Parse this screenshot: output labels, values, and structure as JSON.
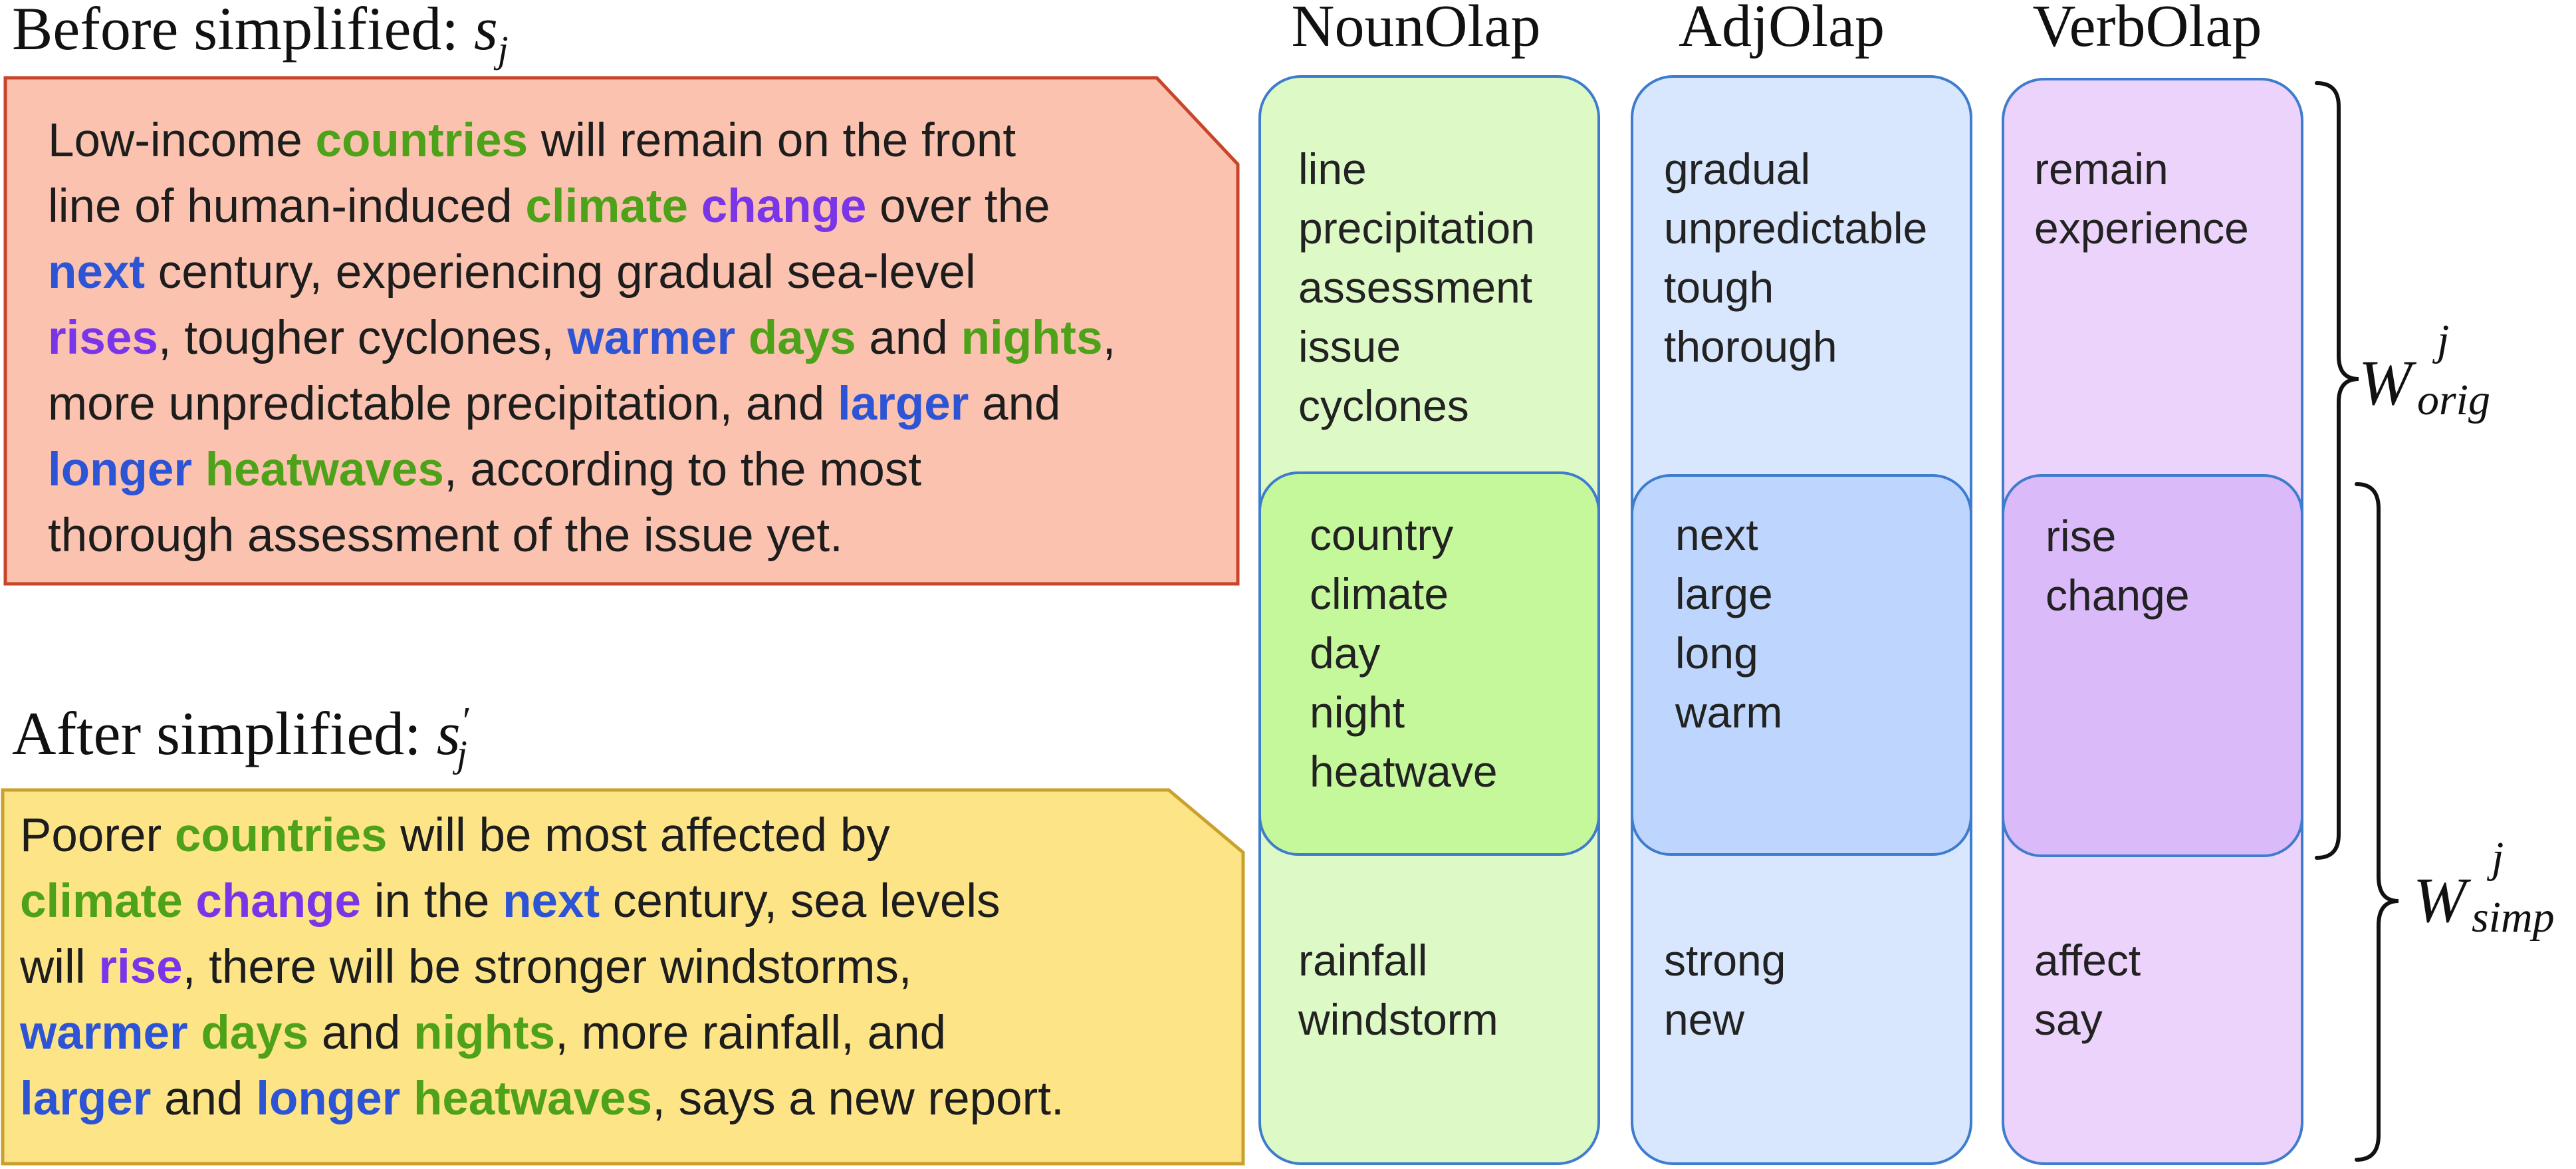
{
  "before": {
    "label": "Before simplified: ",
    "var_base": "s",
    "var_sub": "j",
    "lines": [
      [
        {
          "t": "Low-income "
        },
        {
          "t": "countries",
          "c": "noun"
        },
        {
          "t": " will remain on the front"
        }
      ],
      [
        {
          "t": "line of human-induced "
        },
        {
          "t": "climate",
          "c": "noun"
        },
        {
          "t": " "
        },
        {
          "t": "change",
          "c": "verb"
        },
        {
          "t": " over the"
        }
      ],
      [
        {
          "t": "next",
          "c": "adj"
        },
        {
          "t": " century, experiencing gradual sea-level"
        }
      ],
      [
        {
          "t": "rises",
          "c": "verb"
        },
        {
          "t": ", tougher cyclones, "
        },
        {
          "t": "warmer",
          "c": "adj"
        },
        {
          "t": " "
        },
        {
          "t": "days",
          "c": "noun"
        },
        {
          "t": " and "
        },
        {
          "t": "nights",
          "c": "noun"
        },
        {
          "t": ","
        }
      ],
      [
        {
          "t": "more unpredictable precipitation, and "
        },
        {
          "t": "larger",
          "c": "adj"
        },
        {
          "t": " and"
        }
      ],
      [
        {
          "t": "longer",
          "c": "adj"
        },
        {
          "t": " "
        },
        {
          "t": "heatwaves",
          "c": "noun"
        },
        {
          "t": ", according to the most"
        }
      ],
      [
        {
          "t": "thorough assessment of the issue yet."
        }
      ]
    ]
  },
  "after": {
    "label": "After simplified: ",
    "var_base": "s",
    "var_sup": "′",
    "var_sub": "j",
    "lines": [
      [
        {
          "t": "Poorer "
        },
        {
          "t": "countries",
          "c": "noun"
        },
        {
          "t": " will be most affected by"
        }
      ],
      [
        {
          "t": "climate",
          "c": "noun"
        },
        {
          "t": " "
        },
        {
          "t": "change",
          "c": "verb"
        },
        {
          "t": " in the "
        },
        {
          "t": "next",
          "c": "adj"
        },
        {
          "t": " century, sea levels"
        }
      ],
      [
        {
          "t": "will "
        },
        {
          "t": "rise",
          "c": "verb"
        },
        {
          "t": ", there will be stronger windstorms,"
        }
      ],
      [
        {
          "t": "warmer",
          "c": "adj"
        },
        {
          "t": " "
        },
        {
          "t": "days",
          "c": "noun"
        },
        {
          "t": " and "
        },
        {
          "t": "nights",
          "c": "noun"
        },
        {
          "t": ", more rainfall, and"
        }
      ],
      [
        {
          "t": "larger",
          "c": "adj"
        },
        {
          "t": " and "
        },
        {
          "t": "longer",
          "c": "adj"
        },
        {
          "t": " "
        },
        {
          "t": "heatwaves",
          "c": "noun"
        },
        {
          "t": ", says a new report."
        }
      ]
    ]
  },
  "columns": [
    {
      "key": "noun",
      "title": "NounOlap",
      "orig_only": [
        "line",
        "precipitation",
        "assessment",
        "issue",
        "cyclones"
      ],
      "overlap": [
        "country",
        "climate",
        "day",
        "night",
        "heatwave"
      ],
      "simp_only": [
        "rainfall",
        "windstorm"
      ]
    },
    {
      "key": "adj",
      "title": "AdjOlap",
      "orig_only": [
        "gradual",
        "unpredictable",
        "tough",
        "thorough"
      ],
      "overlap": [
        "next",
        "large",
        "long",
        "warm"
      ],
      "simp_only": [
        "strong",
        "new"
      ]
    },
    {
      "key": "verb",
      "title": "VerbOlap",
      "orig_only": [
        "remain",
        "experience"
      ],
      "overlap": [
        "rise",
        "change"
      ],
      "simp_only": [
        "affect",
        "say"
      ]
    }
  ],
  "brackets": {
    "orig": {
      "base": "W",
      "sup": "j",
      "sub": "orig"
    },
    "simp": {
      "base": "W",
      "sup": "j",
      "sub": "simp"
    }
  },
  "colors": {
    "noun_word": "#4ea21a",
    "adj_word": "#2e54d6",
    "verb_word": "#7a35e8",
    "before_box": "#fbc3af",
    "before_border": "#c8452a",
    "after_box": "#fde587",
    "after_border": "#c9a12c",
    "column_border": "#3e7ccd"
  }
}
